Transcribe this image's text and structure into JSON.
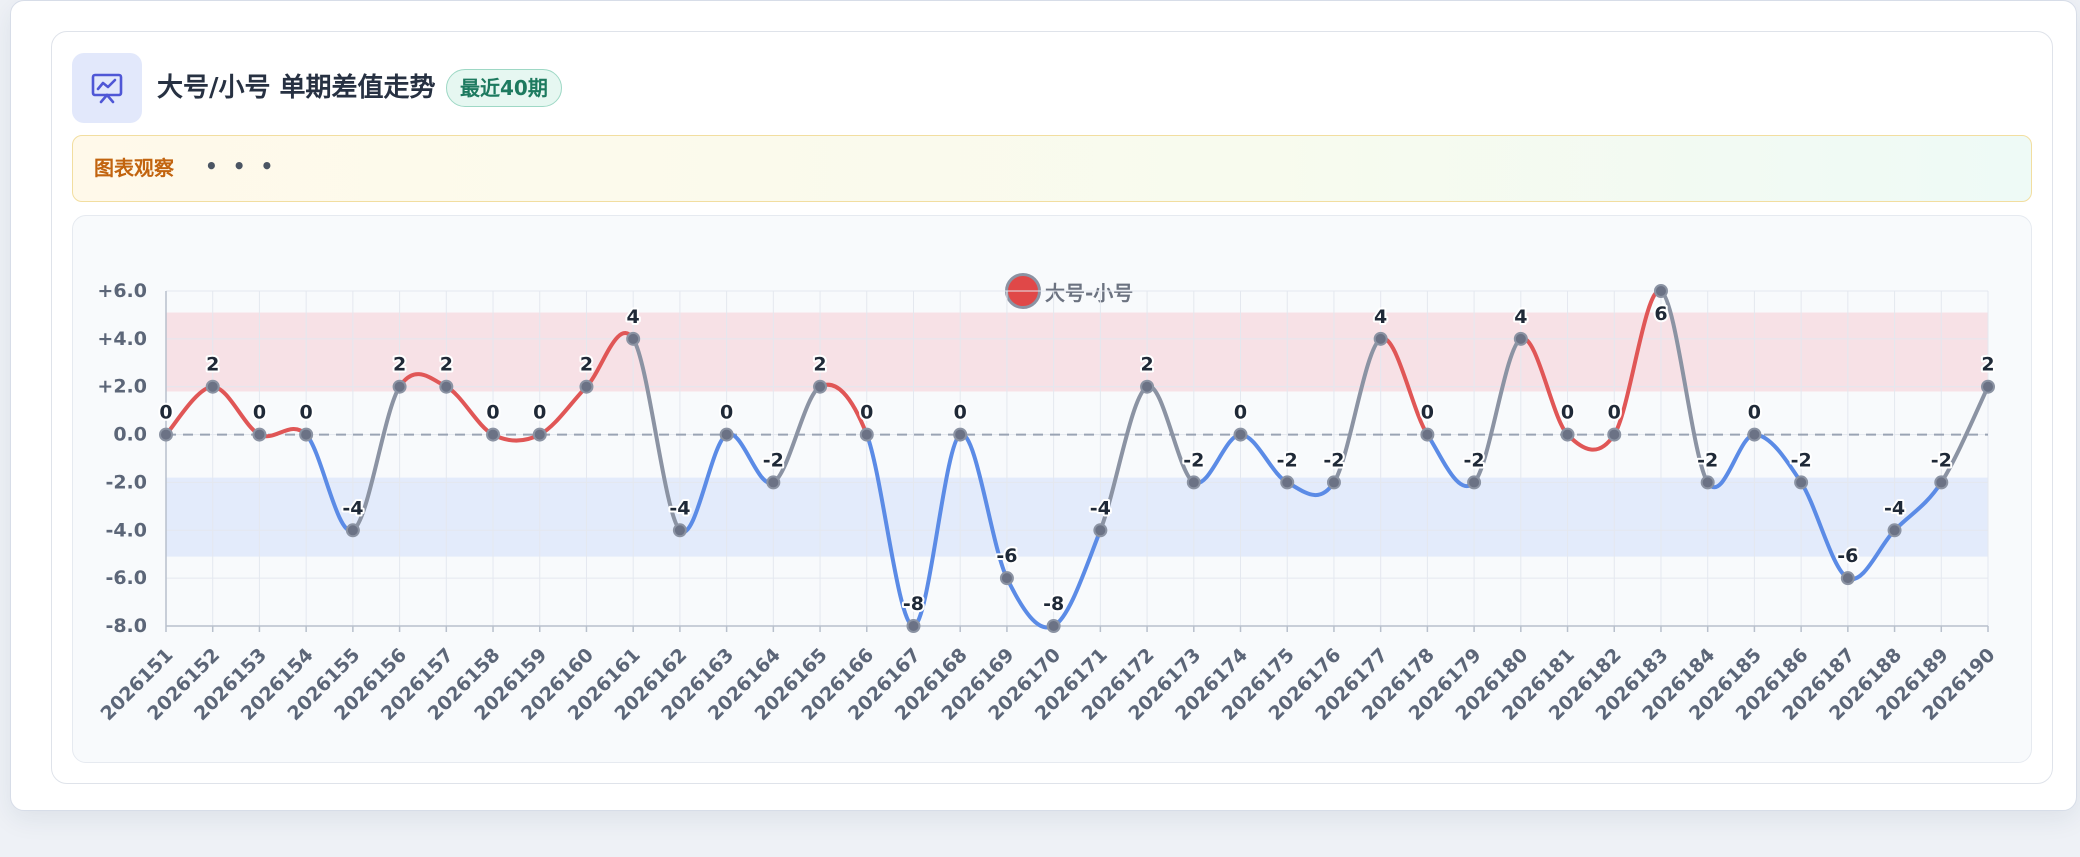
{
  "header": {
    "icon": "presentation-chart-icon",
    "title": "大号/小号 单期差值走势",
    "badge": "最近40期"
  },
  "observation": {
    "label": "图表观察",
    "dots": "• • •"
  },
  "colors": {
    "positive": "#e05656",
    "negative": "#5b8be6",
    "neutral": "#8b93a3",
    "upper_band": "#f7e1e6",
    "lower_band": "#e3ebfb",
    "badge_green": "#1d7a5f",
    "observe_orange": "#c2640f"
  },
  "chart_data": {
    "type": "line",
    "smooth": true,
    "legend": {
      "name": "大号-小号",
      "position": "top-center"
    },
    "y_tick_labels": [
      "+6.0",
      "+4.0",
      "+2.0",
      "0.0",
      "-2.0",
      "-4.0",
      "-6.0",
      "-8.0"
    ],
    "y_ticks": [
      6,
      4,
      2,
      0,
      -2,
      -4,
      -6,
      -8
    ],
    "ylim": [
      -8,
      6
    ],
    "upper_band": [
      1.8,
      5.1
    ],
    "lower_band": [
      -5.1,
      -1.8
    ],
    "zero_line": 0,
    "grid": true,
    "categories": [
      "2026151",
      "2026152",
      "2026153",
      "2026154",
      "2026155",
      "2026156",
      "2026157",
      "2026158",
      "2026159",
      "2026160",
      "2026161",
      "2026162",
      "2026163",
      "2026164",
      "2026165",
      "2026166",
      "2026167",
      "2026168",
      "2026169",
      "2026170",
      "2026171",
      "2026172",
      "2026173",
      "2026174",
      "2026175",
      "2026176",
      "2026177",
      "2026178",
      "2026179",
      "2026180",
      "2026181",
      "2026182",
      "2026183",
      "2026184",
      "2026185",
      "2026186",
      "2026187",
      "2026188",
      "2026189",
      "2026190"
    ],
    "series": [
      {
        "name": "大号-小号",
        "values": [
          0,
          2,
          0,
          0,
          -4,
          2,
          2,
          0,
          0,
          2,
          4,
          -4,
          0,
          -2,
          2,
          0,
          -8,
          0,
          -6,
          -8,
          -4,
          2,
          -2,
          0,
          -2,
          -2,
          4,
          0,
          -2,
          4,
          0,
          0,
          6,
          -2,
          0,
          -2,
          -6,
          -4,
          -2,
          2
        ]
      }
    ],
    "data_labels": [
      "0",
      "2",
      "0",
      "0",
      "-4",
      "2",
      "2",
      "0",
      "0",
      "2",
      "4",
      "-4",
      "0",
      "-2",
      "2",
      "0",
      "-8",
      "0",
      "-6",
      "-8",
      "-4",
      "2",
      "-2",
      "0",
      "-2",
      "-2",
      "4",
      "0",
      "-2",
      "4",
      "0",
      "0",
      "6",
      "-2",
      "0",
      "-2",
      "-6",
      "-4",
      "-2",
      "2"
    ]
  }
}
